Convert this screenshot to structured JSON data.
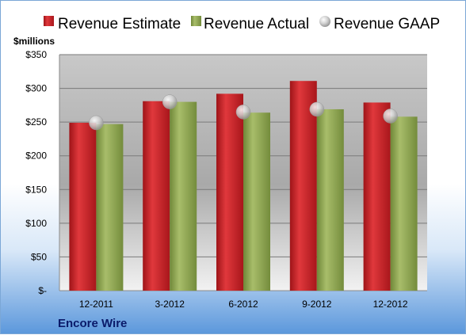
{
  "colors": {
    "estimate": "#c81e24",
    "actual": "#8aa04a",
    "gaap": "#c8c8c8"
  },
  "chart_data": {
    "type": "bar",
    "unit_label": "$millions",
    "company": "Encore Wire",
    "categories": [
      "12-2011",
      "3-2012",
      "6-2012",
      "9-2012",
      "12-2012"
    ],
    "series": [
      {
        "name": "Revenue Estimate",
        "kind": "bar",
        "values": [
          249,
          281,
          292,
          311,
          279
        ]
      },
      {
        "name": "Revenue Actual",
        "kind": "bar",
        "values": [
          247,
          280,
          264,
          269,
          258
        ]
      },
      {
        "name": "Revenue GAAP",
        "kind": "marker",
        "values": [
          249,
          280,
          265,
          269,
          259
        ]
      }
    ],
    "ylim": [
      0,
      350
    ],
    "yticks": [
      0,
      50,
      100,
      150,
      200,
      250,
      300,
      350
    ],
    "ytick_labels": [
      "$-",
      "$50",
      "$100",
      "$150",
      "$200",
      "$250",
      "$300",
      "$350"
    ],
    "grid": true,
    "legend_position": "top"
  }
}
